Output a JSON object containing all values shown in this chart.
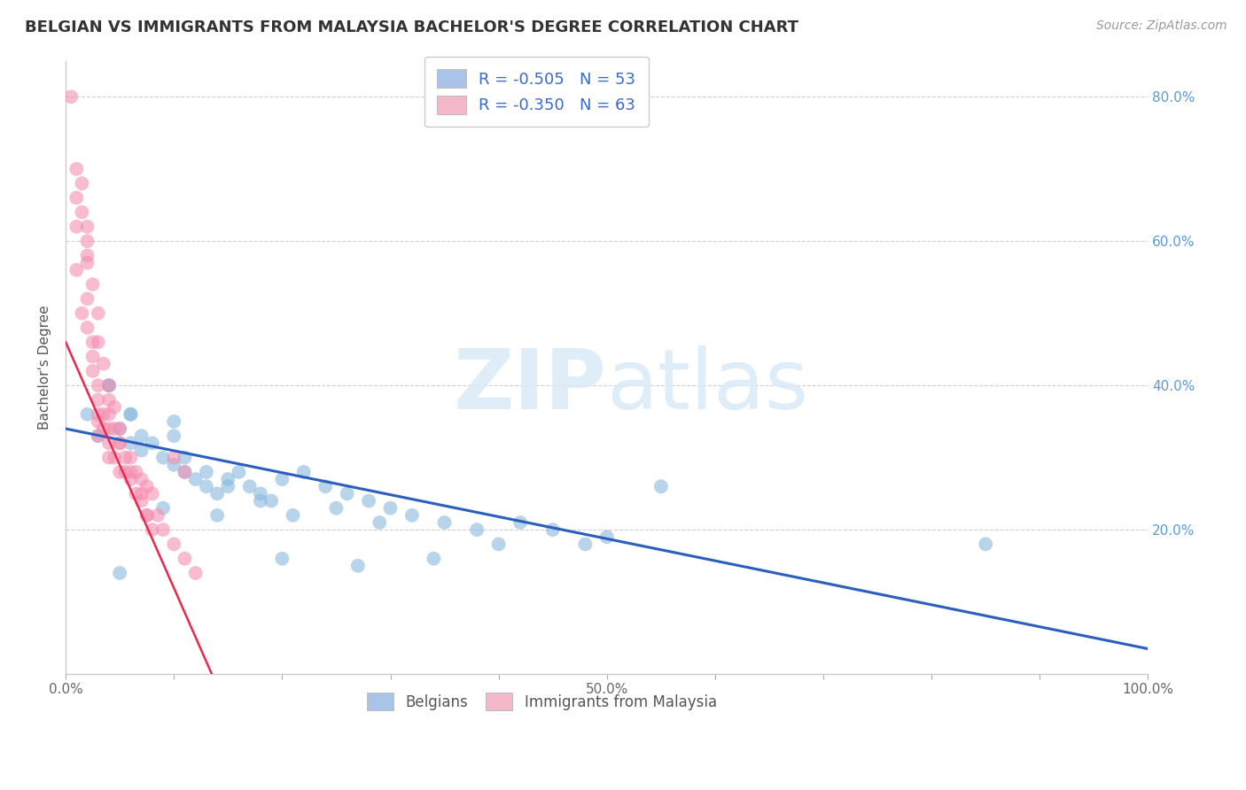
{
  "title": "BELGIAN VS IMMIGRANTS FROM MALAYSIA BACHELOR'S DEGREE CORRELATION CHART",
  "source": "Source: ZipAtlas.com",
  "ylabel": "Bachelor's Degree",
  "legend_top": [
    {
      "label": "R = -0.505   N = 53",
      "color": "#aac4e8"
    },
    {
      "label": "R = -0.350   N = 63",
      "color": "#f4b8c8"
    }
  ],
  "legend_bottom": [
    {
      "label": "Belgians",
      "color": "#aac4e8"
    },
    {
      "label": "Immigrants from Malaysia",
      "color": "#f4b8c8"
    }
  ],
  "xlim": [
    0.0,
    1.0
  ],
  "ylim": [
    0.0,
    0.85
  ],
  "yticks": [
    0.0,
    0.2,
    0.4,
    0.6,
    0.8
  ],
  "ytick_labels": [
    "",
    "20.0%",
    "40.0%",
    "60.0%",
    "80.0%"
  ],
  "xticks": [
    0.0,
    0.1,
    0.2,
    0.3,
    0.4,
    0.5,
    0.6,
    0.7,
    0.8,
    0.9,
    1.0
  ],
  "xtick_labels": [
    "0.0%",
    "",
    "",
    "",
    "",
    "50.0%",
    "",
    "",
    "",
    "",
    "100.0%"
  ],
  "blue_scatter_x": [
    0.02,
    0.03,
    0.04,
    0.05,
    0.06,
    0.06,
    0.07,
    0.07,
    0.08,
    0.09,
    0.1,
    0.1,
    0.11,
    0.12,
    0.13,
    0.14,
    0.15,
    0.16,
    0.17,
    0.18,
    0.19,
    0.2,
    0.22,
    0.24,
    0.26,
    0.28,
    0.3,
    0.32,
    0.35,
    0.38,
    0.4,
    0.42,
    0.45,
    0.48,
    0.5,
    0.05,
    0.09,
    0.11,
    0.13,
    0.15,
    0.18,
    0.21,
    0.25,
    0.29,
    0.34,
    0.04,
    0.06,
    0.1,
    0.14,
    0.2,
    0.27,
    0.85,
    0.55
  ],
  "blue_scatter_y": [
    0.36,
    0.33,
    0.4,
    0.34,
    0.32,
    0.36,
    0.33,
    0.31,
    0.32,
    0.3,
    0.29,
    0.35,
    0.28,
    0.27,
    0.26,
    0.25,
    0.27,
    0.28,
    0.26,
    0.25,
    0.24,
    0.27,
    0.28,
    0.26,
    0.25,
    0.24,
    0.23,
    0.22,
    0.21,
    0.2,
    0.18,
    0.21,
    0.2,
    0.18,
    0.19,
    0.14,
    0.23,
    0.3,
    0.28,
    0.26,
    0.24,
    0.22,
    0.23,
    0.21,
    0.16,
    0.4,
    0.36,
    0.33,
    0.22,
    0.16,
    0.15,
    0.18,
    0.26
  ],
  "pink_scatter_x": [
    0.005,
    0.01,
    0.01,
    0.015,
    0.015,
    0.02,
    0.02,
    0.02,
    0.02,
    0.025,
    0.025,
    0.025,
    0.03,
    0.03,
    0.03,
    0.03,
    0.03,
    0.035,
    0.035,
    0.04,
    0.04,
    0.04,
    0.04,
    0.045,
    0.045,
    0.05,
    0.05,
    0.055,
    0.055,
    0.06,
    0.065,
    0.07,
    0.075,
    0.08,
    0.01,
    0.015,
    0.02,
    0.025,
    0.03,
    0.035,
    0.04,
    0.045,
    0.05,
    0.06,
    0.065,
    0.07,
    0.075,
    0.01,
    0.02,
    0.03,
    0.04,
    0.05,
    0.06,
    0.07,
    0.075,
    0.08,
    0.085,
    0.09,
    0.1,
    0.11,
    0.12,
    0.1,
    0.11
  ],
  "pink_scatter_y": [
    0.8,
    0.66,
    0.62,
    0.68,
    0.64,
    0.6,
    0.57,
    0.52,
    0.48,
    0.46,
    0.44,
    0.42,
    0.4,
    0.38,
    0.36,
    0.35,
    0.33,
    0.36,
    0.34,
    0.36,
    0.34,
    0.32,
    0.3,
    0.34,
    0.3,
    0.32,
    0.28,
    0.3,
    0.28,
    0.3,
    0.28,
    0.27,
    0.26,
    0.25,
    0.56,
    0.5,
    0.58,
    0.54,
    0.46,
    0.43,
    0.4,
    0.37,
    0.34,
    0.27,
    0.25,
    0.24,
    0.22,
    0.7,
    0.62,
    0.5,
    0.38,
    0.32,
    0.28,
    0.25,
    0.22,
    0.2,
    0.22,
    0.2,
    0.18,
    0.16,
    0.14,
    0.3,
    0.28
  ],
  "blue_line_x": [
    0.0,
    1.0
  ],
  "blue_line_y": [
    0.34,
    0.035
  ],
  "pink_line_x": [
    0.0,
    0.135
  ],
  "pink_line_y": [
    0.46,
    0.0
  ],
  "blue_dot_color": "#89b8df",
  "pink_dot_color": "#f48fb1",
  "blue_line_color": "#2b5fbe",
  "pink_line_color": "#e8294e",
  "grid_color": "#d0d0d0",
  "background_color": "#ffffff",
  "right_axis_color": "#5b9bd5",
  "title_fontsize": 13,
  "axis_label_fontsize": 11,
  "tick_fontsize": 11
}
